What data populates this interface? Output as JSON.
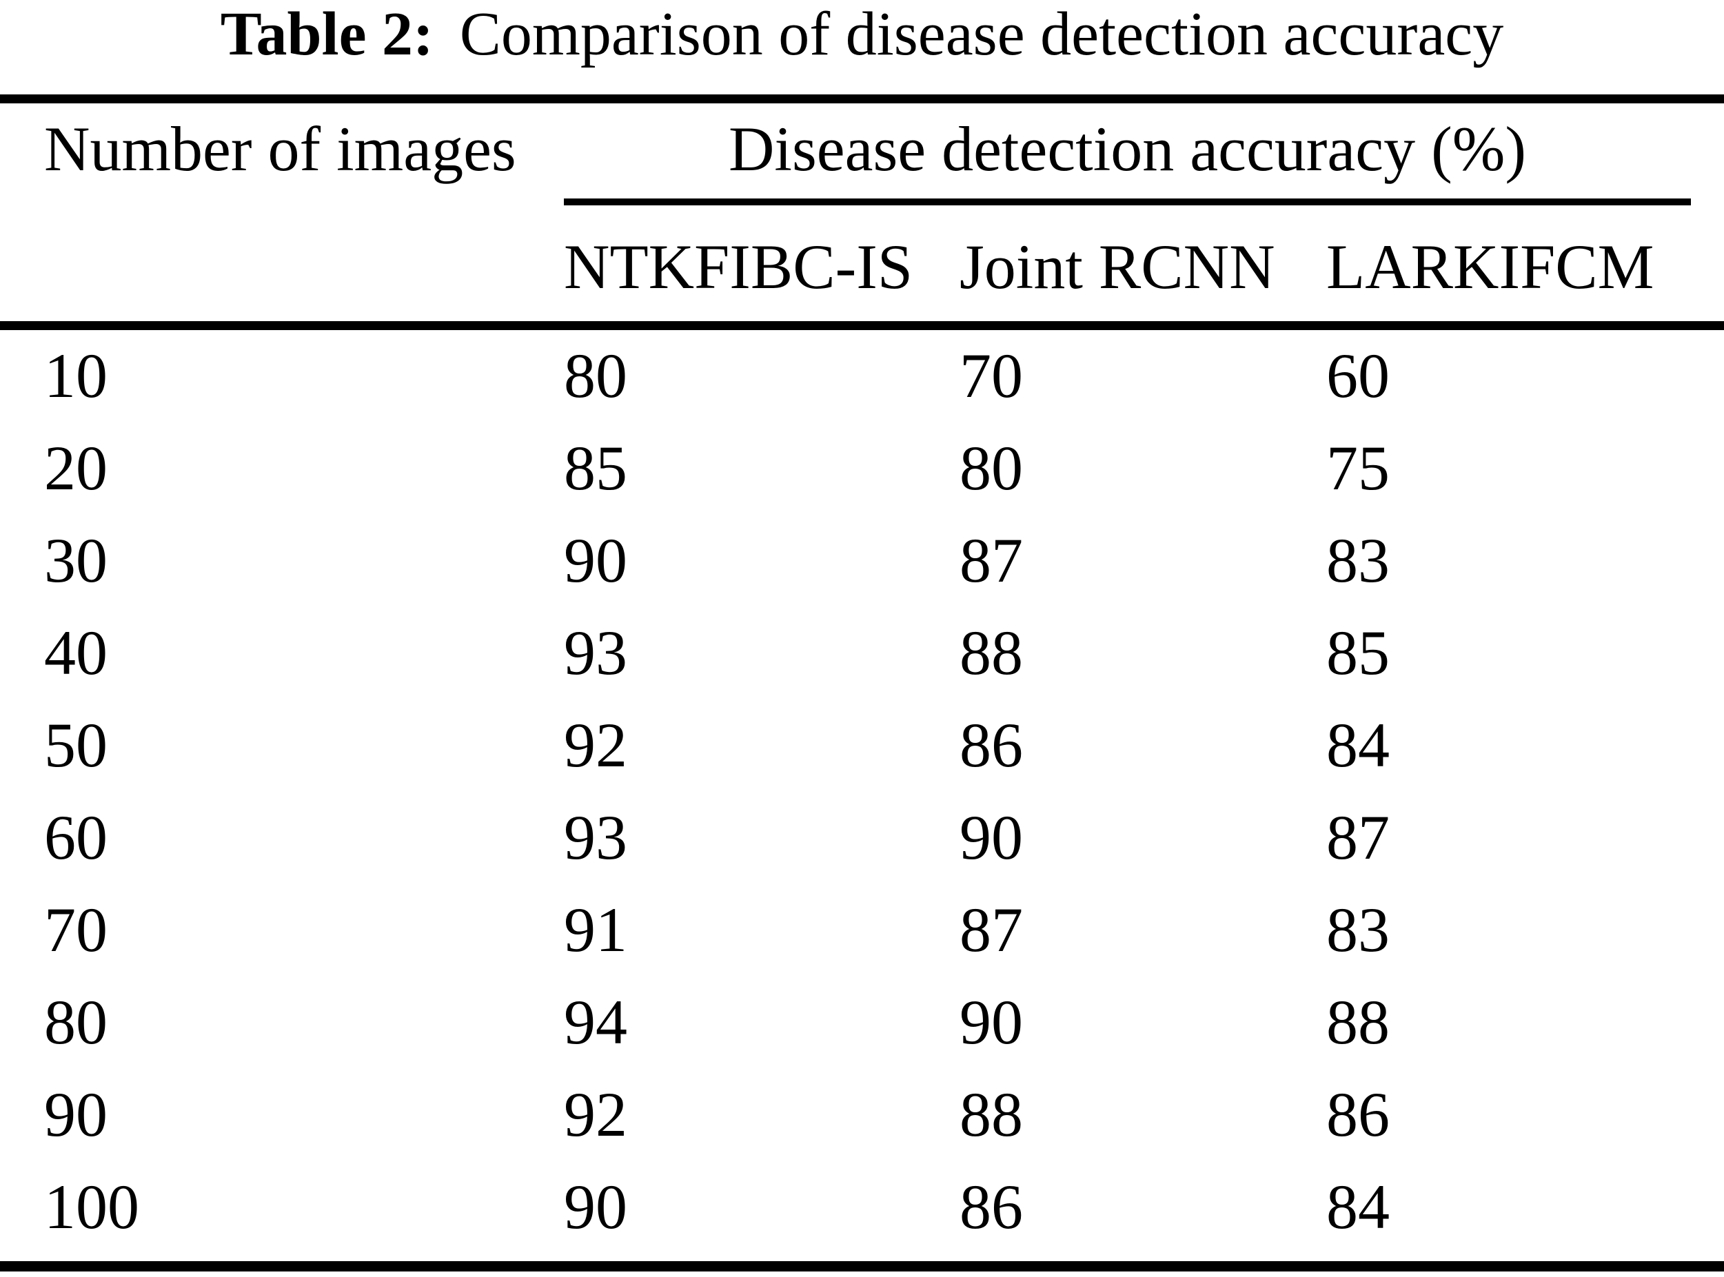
{
  "caption": {
    "label": "Table 2:",
    "text": "Comparison of disease detection accuracy"
  },
  "chart_data": {
    "type": "table",
    "title": "Table 2: Comparison of disease detection accuracy",
    "columns": [
      "Number of images",
      "NTKFIBC-IS",
      "Joint RCNN",
      "LARKIFCM"
    ],
    "column_groups": [
      {
        "label": "Disease detection accuracy (%)",
        "columns": [
          "NTKFIBC-IS",
          "Joint RCNN",
          "LARKIFCM"
        ]
      }
    ],
    "rows": [
      [
        10,
        80,
        70,
        60
      ],
      [
        20,
        85,
        80,
        75
      ],
      [
        30,
        90,
        87,
        83
      ],
      [
        40,
        93,
        88,
        85
      ],
      [
        50,
        92,
        86,
        84
      ],
      [
        60,
        93,
        90,
        87
      ],
      [
        70,
        91,
        87,
        83
      ],
      [
        80,
        94,
        90,
        88
      ],
      [
        90,
        92,
        88,
        86
      ],
      [
        100,
        90,
        86,
        84
      ]
    ]
  }
}
